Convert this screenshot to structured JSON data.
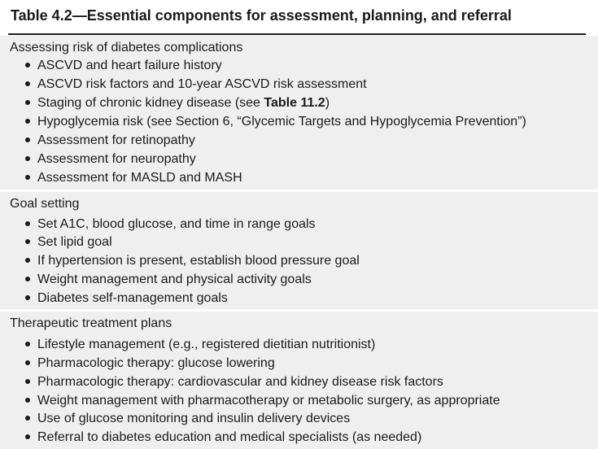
{
  "title": "Table 4.2—Essential components for assessment, planning, and referral",
  "sections": [
    {
      "heading": "Assessing risk of diabetes complications",
      "items": [
        "ASCVD and heart failure history",
        "ASCVD risk factors and 10-year ASCVD risk assessment",
        "Staging of chronic kidney disease (see ",
        "Hypoglycemia risk (see Section 6, “Glycemic Targets and Hypoglycemia Prevention”)",
        "Assessment for retinopathy",
        "Assessment for neuropathy",
        "Assessment for MASLD and MASH"
      ],
      "item3_bold_ref": "Table 11.2",
      "item3_tail": ")"
    },
    {
      "heading": "Goal setting",
      "items": [
        "Set A1C, blood glucose, and time in range goals",
        "Set lipid goal",
        "If hypertension is present, establish blood pressure goal",
        "Weight management and physical activity goals",
        "Diabetes self-management goals"
      ]
    },
    {
      "heading": "Therapeutic treatment plans",
      "items": [
        "Lifestyle management (e.g., registered dietitian nutritionist)",
        "Pharmacologic therapy: glucose lowering",
        "Pharmacologic therapy: cardiovascular and kidney disease risk factors",
        "Weight management with pharmacotherapy or metabolic surgery, as appropriate",
        "Use of glucose monitoring and insulin delivery devices",
        "Referral to diabetes education and medical specialists (as needed)"
      ]
    }
  ],
  "colors": {
    "section_bg": "#efefef",
    "text": "#1a1a1a",
    "rule": "#222222"
  }
}
